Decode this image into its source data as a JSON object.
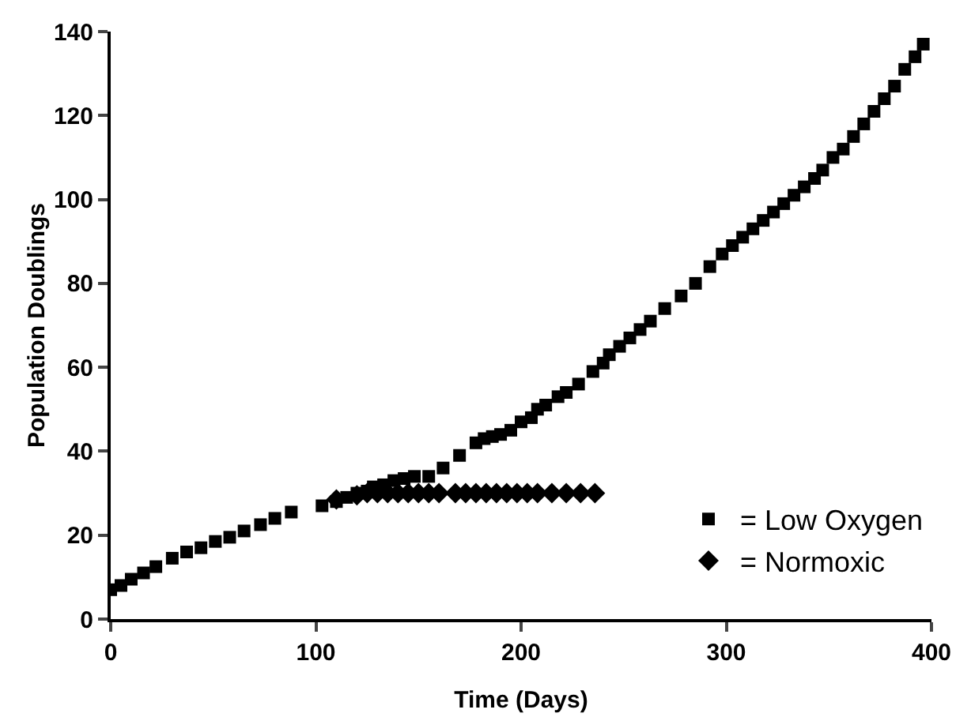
{
  "chart_data": {
    "type": "scatter",
    "xlabel": "Time (Days)",
    "ylabel": "Population Doublings",
    "xlim": [
      0,
      400
    ],
    "xticks": [
      0,
      100,
      200,
      300,
      400
    ],
    "ylim": [
      0,
      140
    ],
    "yticks": [
      0,
      20,
      40,
      60,
      80,
      100,
      120,
      140
    ],
    "grid": false,
    "legend": "bottom right",
    "series": [
      {
        "name": "= Low Oxygen",
        "color": "#000000",
        "marker": "square",
        "x": [
          0,
          5,
          10,
          16,
          22,
          30,
          37,
          44,
          51,
          58,
          65,
          73,
          80,
          88,
          103,
          110,
          115,
          120,
          125,
          128,
          133,
          138,
          143,
          148,
          155,
          162,
          170,
          178,
          182,
          186,
          190,
          195,
          200,
          205,
          208,
          212,
          218,
          222,
          228,
          235,
          240,
          243,
          248,
          253,
          258,
          263,
          270,
          278,
          285,
          292,
          298,
          303,
          308,
          313,
          318,
          323,
          328,
          333,
          338,
          343,
          347,
          352,
          357,
          362,
          367,
          372,
          377,
          382,
          387,
          392,
          396
        ],
        "values": [
          7,
          8,
          9.5,
          11,
          12.5,
          14.5,
          16,
          17,
          18.5,
          19.5,
          21,
          22.5,
          24,
          25.5,
          27,
          28,
          29,
          30,
          30.5,
          31.5,
          32,
          33,
          33.5,
          34,
          34,
          36,
          39,
          42,
          43,
          43.5,
          44,
          45,
          47,
          48,
          50,
          51,
          53,
          54,
          56,
          59,
          61,
          63,
          65,
          67,
          69,
          71,
          74,
          77,
          80,
          84,
          87,
          89,
          91,
          93,
          95,
          97,
          99,
          101,
          103,
          105,
          107,
          110,
          112,
          115,
          118,
          121,
          124,
          127,
          131,
          134,
          137
        ]
      },
      {
        "name": "= Normoxic",
        "color": "#000000",
        "marker": "diamond",
        "x": [
          110,
          115,
          120,
          125,
          130,
          135,
          140,
          145,
          150,
          155,
          160,
          168,
          173,
          178,
          183,
          188,
          193,
          198,
          203,
          208,
          215,
          222,
          229,
          236
        ],
        "values": [
          28.5,
          null,
          29.5,
          30,
          30,
          30,
          30,
          30,
          30,
          30,
          30,
          30,
          30,
          30,
          30,
          30,
          30,
          30,
          30,
          30,
          30,
          30,
          30,
          30
        ]
      }
    ]
  }
}
